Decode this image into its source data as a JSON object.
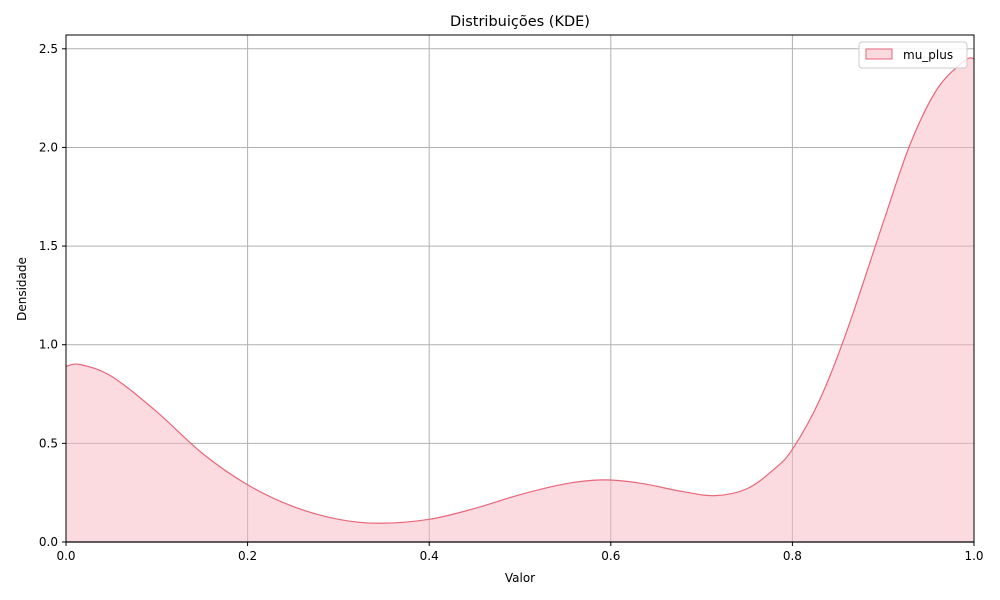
{
  "chart_data": {
    "type": "area",
    "title": "Distribuições (KDE)",
    "xlabel": "Valor",
    "ylabel": "Densidade",
    "xlim": [
      0,
      1
    ],
    "ylim": [
      0,
      2.57
    ],
    "x_ticks": [
      0,
      0.2,
      0.4,
      0.6,
      0.8,
      1.0
    ],
    "x_tick_labels": [
      "0.0",
      "0.2",
      "0.4",
      "0.6",
      "0.8",
      "1.0"
    ],
    "y_ticks": [
      0,
      0.5,
      1.0,
      1.5,
      2.0,
      2.5
    ],
    "y_tick_labels": [
      "0.0",
      "0.5",
      "1.0",
      "1.5",
      "2.0",
      "2.5"
    ],
    "grid": true,
    "legend_position": "top-right",
    "series": [
      {
        "name": "mu_plus",
        "color": "#e8677a",
        "fill": "#f7b6c2",
        "x": [
          0,
          0.015,
          0.05,
          0.1,
          0.15,
          0.2,
          0.25,
          0.3,
          0.345,
          0.4,
          0.45,
          0.5,
          0.55,
          0.59,
          0.63,
          0.68,
          0.715,
          0.75,
          0.78,
          0.8,
          0.83,
          0.86,
          0.9,
          0.93,
          0.96,
          0.99,
          1.0
        ],
        "y": [
          0.89,
          0.9,
          0.84,
          0.66,
          0.45,
          0.29,
          0.18,
          0.115,
          0.095,
          0.115,
          0.17,
          0.24,
          0.295,
          0.315,
          0.3,
          0.255,
          0.235,
          0.27,
          0.37,
          0.47,
          0.72,
          1.07,
          1.62,
          2.02,
          2.3,
          2.44,
          2.45
        ]
      }
    ]
  }
}
